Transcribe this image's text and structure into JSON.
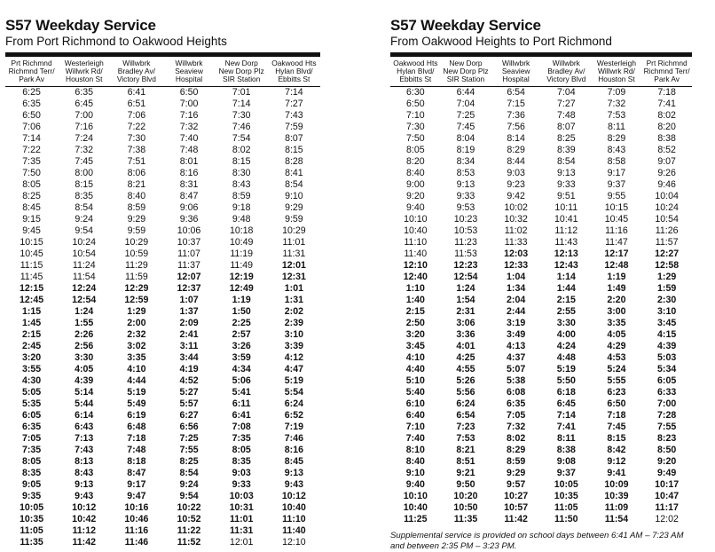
{
  "left": {
    "title": "S57 Weekday Service",
    "subtitle": "From Port Richmond to Oakwood Heights",
    "headers": [
      [
        "Prt Richmnd",
        "Richmnd Terr/",
        "Park Av"
      ],
      [
        "Westerleigh",
        "Willwrk Rd/",
        "Houston St"
      ],
      [
        "Willwbrk",
        "Bradley Av/",
        "Victory Blvd"
      ],
      [
        "Willwbrk",
        "Seaview",
        "Hospital"
      ],
      [
        "New Dorp",
        "New Dorp Plz",
        "SIR Station"
      ],
      [
        "Oakwood Hts",
        "Hylan Blvd/",
        "Ebbitts St"
      ]
    ],
    "rows": [
      [
        "6:25",
        "6:35",
        "6:41",
        "6:50",
        "7:01",
        "7:14"
      ],
      [
        "6:35",
        "6:45",
        "6:51",
        "7:00",
        "7:14",
        "7:27"
      ],
      [
        "6:50",
        "7:00",
        "7:06",
        "7:16",
        "7:30",
        "7:43"
      ],
      [
        "7:06",
        "7:16",
        "7:22",
        "7:32",
        "7:46",
        "7:59"
      ],
      [
        "7:14",
        "7:24",
        "7:30",
        "7:40",
        "7:54",
        "8:07"
      ],
      [
        "7:22",
        "7:32",
        "7:38",
        "7:48",
        "8:02",
        "8:15"
      ],
      [
        "7:35",
        "7:45",
        "7:51",
        "8:01",
        "8:15",
        "8:28"
      ],
      [
        "7:50",
        "8:00",
        "8:06",
        "8:16",
        "8:30",
        "8:41"
      ],
      [
        "8:05",
        "8:15",
        "8:21",
        "8:31",
        "8:43",
        "8:54"
      ],
      [
        "8:25",
        "8:35",
        "8:40",
        "8:47",
        "8:59",
        "9:10"
      ],
      [
        "8:45",
        "8:54",
        "8:59",
        "9:06",
        "9:18",
        "9:29"
      ],
      [
        "9:15",
        "9:24",
        "9:29",
        "9:36",
        "9:48",
        "9:59"
      ],
      [
        "9:45",
        "9:54",
        "9:59",
        "10:06",
        "10:18",
        "10:29"
      ],
      [
        "10:15",
        "10:24",
        "10:29",
        "10:37",
        "10:49",
        "11:01"
      ],
      [
        "10:45",
        "10:54",
        "10:59",
        "11:07",
        "11:19",
        "11:31"
      ],
      [
        "11:15",
        "11:24",
        "11:29",
        "11:37",
        "11:49",
        "12:01"
      ],
      [
        "11:45",
        "11:54",
        "11:59",
        "12:07",
        "12:19",
        "12:31"
      ],
      [
        "12:15",
        "12:24",
        "12:29",
        "12:37",
        "12:49",
        "1:01"
      ],
      [
        "12:45",
        "12:54",
        "12:59",
        "1:07",
        "1:19",
        "1:31"
      ],
      [
        "1:15",
        "1:24",
        "1:29",
        "1:37",
        "1:50",
        "2:02"
      ],
      [
        "1:45",
        "1:55",
        "2:00",
        "2:09",
        "2:25",
        "2:39"
      ],
      [
        "2:15",
        "2:26",
        "2:32",
        "2:41",
        "2:57",
        "3:10"
      ],
      [
        "2:45",
        "2:56",
        "3:02",
        "3:11",
        "3:26",
        "3:39"
      ],
      [
        "3:20",
        "3:30",
        "3:35",
        "3:44",
        "3:59",
        "4:12"
      ],
      [
        "3:55",
        "4:05",
        "4:10",
        "4:19",
        "4:34",
        "4:47"
      ],
      [
        "4:30",
        "4:39",
        "4:44",
        "4:52",
        "5:06",
        "5:19"
      ],
      [
        "5:05",
        "5:14",
        "5:19",
        "5:27",
        "5:41",
        "5:54"
      ],
      [
        "5:35",
        "5:44",
        "5:49",
        "5:57",
        "6:11",
        "6:24"
      ],
      [
        "6:05",
        "6:14",
        "6:19",
        "6:27",
        "6:41",
        "6:52"
      ],
      [
        "6:35",
        "6:43",
        "6:48",
        "6:56",
        "7:08",
        "7:19"
      ],
      [
        "7:05",
        "7:13",
        "7:18",
        "7:25",
        "7:35",
        "7:46"
      ],
      [
        "7:35",
        "7:43",
        "7:48",
        "7:55",
        "8:05",
        "8:16"
      ],
      [
        "8:05",
        "8:13",
        "8:18",
        "8:25",
        "8:35",
        "8:45"
      ],
      [
        "8:35",
        "8:43",
        "8:47",
        "8:54",
        "9:03",
        "9:13"
      ],
      [
        "9:05",
        "9:13",
        "9:17",
        "9:24",
        "9:33",
        "9:43"
      ],
      [
        "9:35",
        "9:43",
        "9:47",
        "9:54",
        "10:03",
        "10:12"
      ],
      [
        "10:05",
        "10:12",
        "10:16",
        "10:22",
        "10:31",
        "10:40"
      ],
      [
        "10:35",
        "10:42",
        "10:46",
        "10:52",
        "11:01",
        "11:10"
      ],
      [
        "11:05",
        "11:12",
        "11:16",
        "11:22",
        "11:31",
        "11:40"
      ],
      [
        "11:35",
        "11:42",
        "11:46",
        "11:52",
        "12:01",
        "12:10"
      ]
    ],
    "bold_rows": [
      [
        false,
        false,
        false,
        false,
        false,
        false
      ],
      [
        false,
        false,
        false,
        false,
        false,
        false
      ],
      [
        false,
        false,
        false,
        false,
        false,
        false
      ],
      [
        false,
        false,
        false,
        false,
        false,
        false
      ],
      [
        false,
        false,
        false,
        false,
        false,
        false
      ],
      [
        false,
        false,
        false,
        false,
        false,
        false
      ],
      [
        false,
        false,
        false,
        false,
        false,
        false
      ],
      [
        false,
        false,
        false,
        false,
        false,
        false
      ],
      [
        false,
        false,
        false,
        false,
        false,
        false
      ],
      [
        false,
        false,
        false,
        false,
        false,
        false
      ],
      [
        false,
        false,
        false,
        false,
        false,
        false
      ],
      [
        false,
        false,
        false,
        false,
        false,
        false
      ],
      [
        false,
        false,
        false,
        false,
        false,
        false
      ],
      [
        false,
        false,
        false,
        false,
        false,
        false
      ],
      [
        false,
        false,
        false,
        false,
        false,
        false
      ],
      [
        false,
        false,
        false,
        false,
        false,
        true
      ],
      [
        false,
        false,
        false,
        true,
        true,
        true
      ],
      [
        true,
        true,
        true,
        true,
        true,
        true
      ],
      [
        true,
        true,
        true,
        true,
        true,
        true
      ],
      [
        true,
        true,
        true,
        true,
        true,
        true
      ],
      [
        true,
        true,
        true,
        true,
        true,
        true
      ],
      [
        true,
        true,
        true,
        true,
        true,
        true
      ],
      [
        true,
        true,
        true,
        true,
        true,
        true
      ],
      [
        true,
        true,
        true,
        true,
        true,
        true
      ],
      [
        true,
        true,
        true,
        true,
        true,
        true
      ],
      [
        true,
        true,
        true,
        true,
        true,
        true
      ],
      [
        true,
        true,
        true,
        true,
        true,
        true
      ],
      [
        true,
        true,
        true,
        true,
        true,
        true
      ],
      [
        true,
        true,
        true,
        true,
        true,
        true
      ],
      [
        true,
        true,
        true,
        true,
        true,
        true
      ],
      [
        true,
        true,
        true,
        true,
        true,
        true
      ],
      [
        true,
        true,
        true,
        true,
        true,
        true
      ],
      [
        true,
        true,
        true,
        true,
        true,
        true
      ],
      [
        true,
        true,
        true,
        true,
        true,
        true
      ],
      [
        true,
        true,
        true,
        true,
        true,
        true
      ],
      [
        true,
        true,
        true,
        true,
        true,
        true
      ],
      [
        true,
        true,
        true,
        true,
        true,
        true
      ],
      [
        true,
        true,
        true,
        true,
        true,
        true
      ],
      [
        true,
        true,
        true,
        true,
        true,
        true
      ],
      [
        true,
        true,
        true,
        true,
        false,
        false
      ]
    ]
  },
  "right": {
    "title": "S57 Weekday Service",
    "subtitle": "From Oakwood Heights to Port Richmond",
    "headers": [
      [
        "Oakwood Hts",
        "Hylan Blvd/",
        "Ebbitts St"
      ],
      [
        "New Dorp",
        "New Dorp Plz",
        "SIR Station"
      ],
      [
        "Willwbrk",
        "Seaview",
        "Hospital"
      ],
      [
        "Willwbrk",
        "Bradley Av/",
        "Victory Blvd"
      ],
      [
        "Westerleigh",
        "Willwrk Rd/",
        "Houston St"
      ],
      [
        "Prt Richmnd",
        "Richmnd Terr/",
        "Park Av"
      ]
    ],
    "rows": [
      [
        "6:30",
        "6:44",
        "6:54",
        "7:04",
        "7:09",
        "7:18"
      ],
      [
        "6:50",
        "7:04",
        "7:15",
        "7:27",
        "7:32",
        "7:41"
      ],
      [
        "7:10",
        "7:25",
        "7:36",
        "7:48",
        "7:53",
        "8:02"
      ],
      [
        "7:30",
        "7:45",
        "7:56",
        "8:07",
        "8:11",
        "8:20"
      ],
      [
        "7:50",
        "8:04",
        "8:14",
        "8:25",
        "8:29",
        "8:38"
      ],
      [
        "8:05",
        "8:19",
        "8:29",
        "8:39",
        "8:43",
        "8:52"
      ],
      [
        "8:20",
        "8:34",
        "8:44",
        "8:54",
        "8:58",
        "9:07"
      ],
      [
        "8:40",
        "8:53",
        "9:03",
        "9:13",
        "9:17",
        "9:26"
      ],
      [
        "9:00",
        "9:13",
        "9:23",
        "9:33",
        "9:37",
        "9:46"
      ],
      [
        "9:20",
        "9:33",
        "9:42",
        "9:51",
        "9:55",
        "10:04"
      ],
      [
        "9:40",
        "9:53",
        "10:02",
        "10:11",
        "10:15",
        "10:24"
      ],
      [
        "10:10",
        "10:23",
        "10:32",
        "10:41",
        "10:45",
        "10:54"
      ],
      [
        "10:40",
        "10:53",
        "11:02",
        "11:12",
        "11:16",
        "11:26"
      ],
      [
        "11:10",
        "11:23",
        "11:33",
        "11:43",
        "11:47",
        "11:57"
      ],
      [
        "11:40",
        "11:53",
        "12:03",
        "12:13",
        "12:17",
        "12:27"
      ],
      [
        "12:10",
        "12:23",
        "12:33",
        "12:43",
        "12:48",
        "12:58"
      ],
      [
        "12:40",
        "12:54",
        "1:04",
        "1:14",
        "1:19",
        "1:29"
      ],
      [
        "1:10",
        "1:24",
        "1:34",
        "1:44",
        "1:49",
        "1:59"
      ],
      [
        "1:40",
        "1:54",
        "2:04",
        "2:15",
        "2:20",
        "2:30"
      ],
      [
        "2:15",
        "2:31",
        "2:44",
        "2:55",
        "3:00",
        "3:10"
      ],
      [
        "2:50",
        "3:06",
        "3:19",
        "3:30",
        "3:35",
        "3:45"
      ],
      [
        "3:20",
        "3:36",
        "3:49",
        "4:00",
        "4:05",
        "4:15"
      ],
      [
        "3:45",
        "4:01",
        "4:13",
        "4:24",
        "4:29",
        "4:39"
      ],
      [
        "4:10",
        "4:25",
        "4:37",
        "4:48",
        "4:53",
        "5:03"
      ],
      [
        "4:40",
        "4:55",
        "5:07",
        "5:19",
        "5:24",
        "5:34"
      ],
      [
        "5:10",
        "5:26",
        "5:38",
        "5:50",
        "5:55",
        "6:05"
      ],
      [
        "5:40",
        "5:56",
        "6:08",
        "6:18",
        "6:23",
        "6:33"
      ],
      [
        "6:10",
        "6:24",
        "6:35",
        "6:45",
        "6:50",
        "7:00"
      ],
      [
        "6:40",
        "6:54",
        "7:05",
        "7:14",
        "7:18",
        "7:28"
      ],
      [
        "7:10",
        "7:23",
        "7:32",
        "7:41",
        "7:45",
        "7:55"
      ],
      [
        "7:40",
        "7:53",
        "8:02",
        "8:11",
        "8:15",
        "8:23"
      ],
      [
        "8:10",
        "8:21",
        "8:29",
        "8:38",
        "8:42",
        "8:50"
      ],
      [
        "8:40",
        "8:51",
        "8:59",
        "9:08",
        "9:12",
        "9:20"
      ],
      [
        "9:10",
        "9:21",
        "9:29",
        "9:37",
        "9:41",
        "9:49"
      ],
      [
        "9:40",
        "9:50",
        "9:57",
        "10:05",
        "10:09",
        "10:17"
      ],
      [
        "10:10",
        "10:20",
        "10:27",
        "10:35",
        "10:39",
        "10:47"
      ],
      [
        "10:40",
        "10:50",
        "10:57",
        "11:05",
        "11:09",
        "11:17"
      ],
      [
        "11:25",
        "11:35",
        "11:42",
        "11:50",
        "11:54",
        "12:02"
      ]
    ],
    "bold_rows": [
      [
        false,
        false,
        false,
        false,
        false,
        false
      ],
      [
        false,
        false,
        false,
        false,
        false,
        false
      ],
      [
        false,
        false,
        false,
        false,
        false,
        false
      ],
      [
        false,
        false,
        false,
        false,
        false,
        false
      ],
      [
        false,
        false,
        false,
        false,
        false,
        false
      ],
      [
        false,
        false,
        false,
        false,
        false,
        false
      ],
      [
        false,
        false,
        false,
        false,
        false,
        false
      ],
      [
        false,
        false,
        false,
        false,
        false,
        false
      ],
      [
        false,
        false,
        false,
        false,
        false,
        false
      ],
      [
        false,
        false,
        false,
        false,
        false,
        false
      ],
      [
        false,
        false,
        false,
        false,
        false,
        false
      ],
      [
        false,
        false,
        false,
        false,
        false,
        false
      ],
      [
        false,
        false,
        false,
        false,
        false,
        false
      ],
      [
        false,
        false,
        false,
        false,
        false,
        false
      ],
      [
        false,
        false,
        true,
        true,
        true,
        true
      ],
      [
        true,
        true,
        true,
        true,
        true,
        true
      ],
      [
        true,
        true,
        true,
        true,
        true,
        true
      ],
      [
        true,
        true,
        true,
        true,
        true,
        true
      ],
      [
        true,
        true,
        true,
        true,
        true,
        true
      ],
      [
        true,
        true,
        true,
        true,
        true,
        true
      ],
      [
        true,
        true,
        true,
        true,
        true,
        true
      ],
      [
        true,
        true,
        true,
        true,
        true,
        true
      ],
      [
        true,
        true,
        true,
        true,
        true,
        true
      ],
      [
        true,
        true,
        true,
        true,
        true,
        true
      ],
      [
        true,
        true,
        true,
        true,
        true,
        true
      ],
      [
        true,
        true,
        true,
        true,
        true,
        true
      ],
      [
        true,
        true,
        true,
        true,
        true,
        true
      ],
      [
        true,
        true,
        true,
        true,
        true,
        true
      ],
      [
        true,
        true,
        true,
        true,
        true,
        true
      ],
      [
        true,
        true,
        true,
        true,
        true,
        true
      ],
      [
        true,
        true,
        true,
        true,
        true,
        true
      ],
      [
        true,
        true,
        true,
        true,
        true,
        true
      ],
      [
        true,
        true,
        true,
        true,
        true,
        true
      ],
      [
        true,
        true,
        true,
        true,
        true,
        true
      ],
      [
        true,
        true,
        true,
        true,
        true,
        true
      ],
      [
        true,
        true,
        true,
        true,
        true,
        true
      ],
      [
        true,
        true,
        true,
        true,
        true,
        true
      ],
      [
        true,
        true,
        true,
        true,
        true,
        false
      ]
    ],
    "note_line1": "Supplemental service is provided on school days between 6:41 AM – 7:23 AM",
    "note_line2": "and between 2:35 PM – 3:23 PM."
  }
}
